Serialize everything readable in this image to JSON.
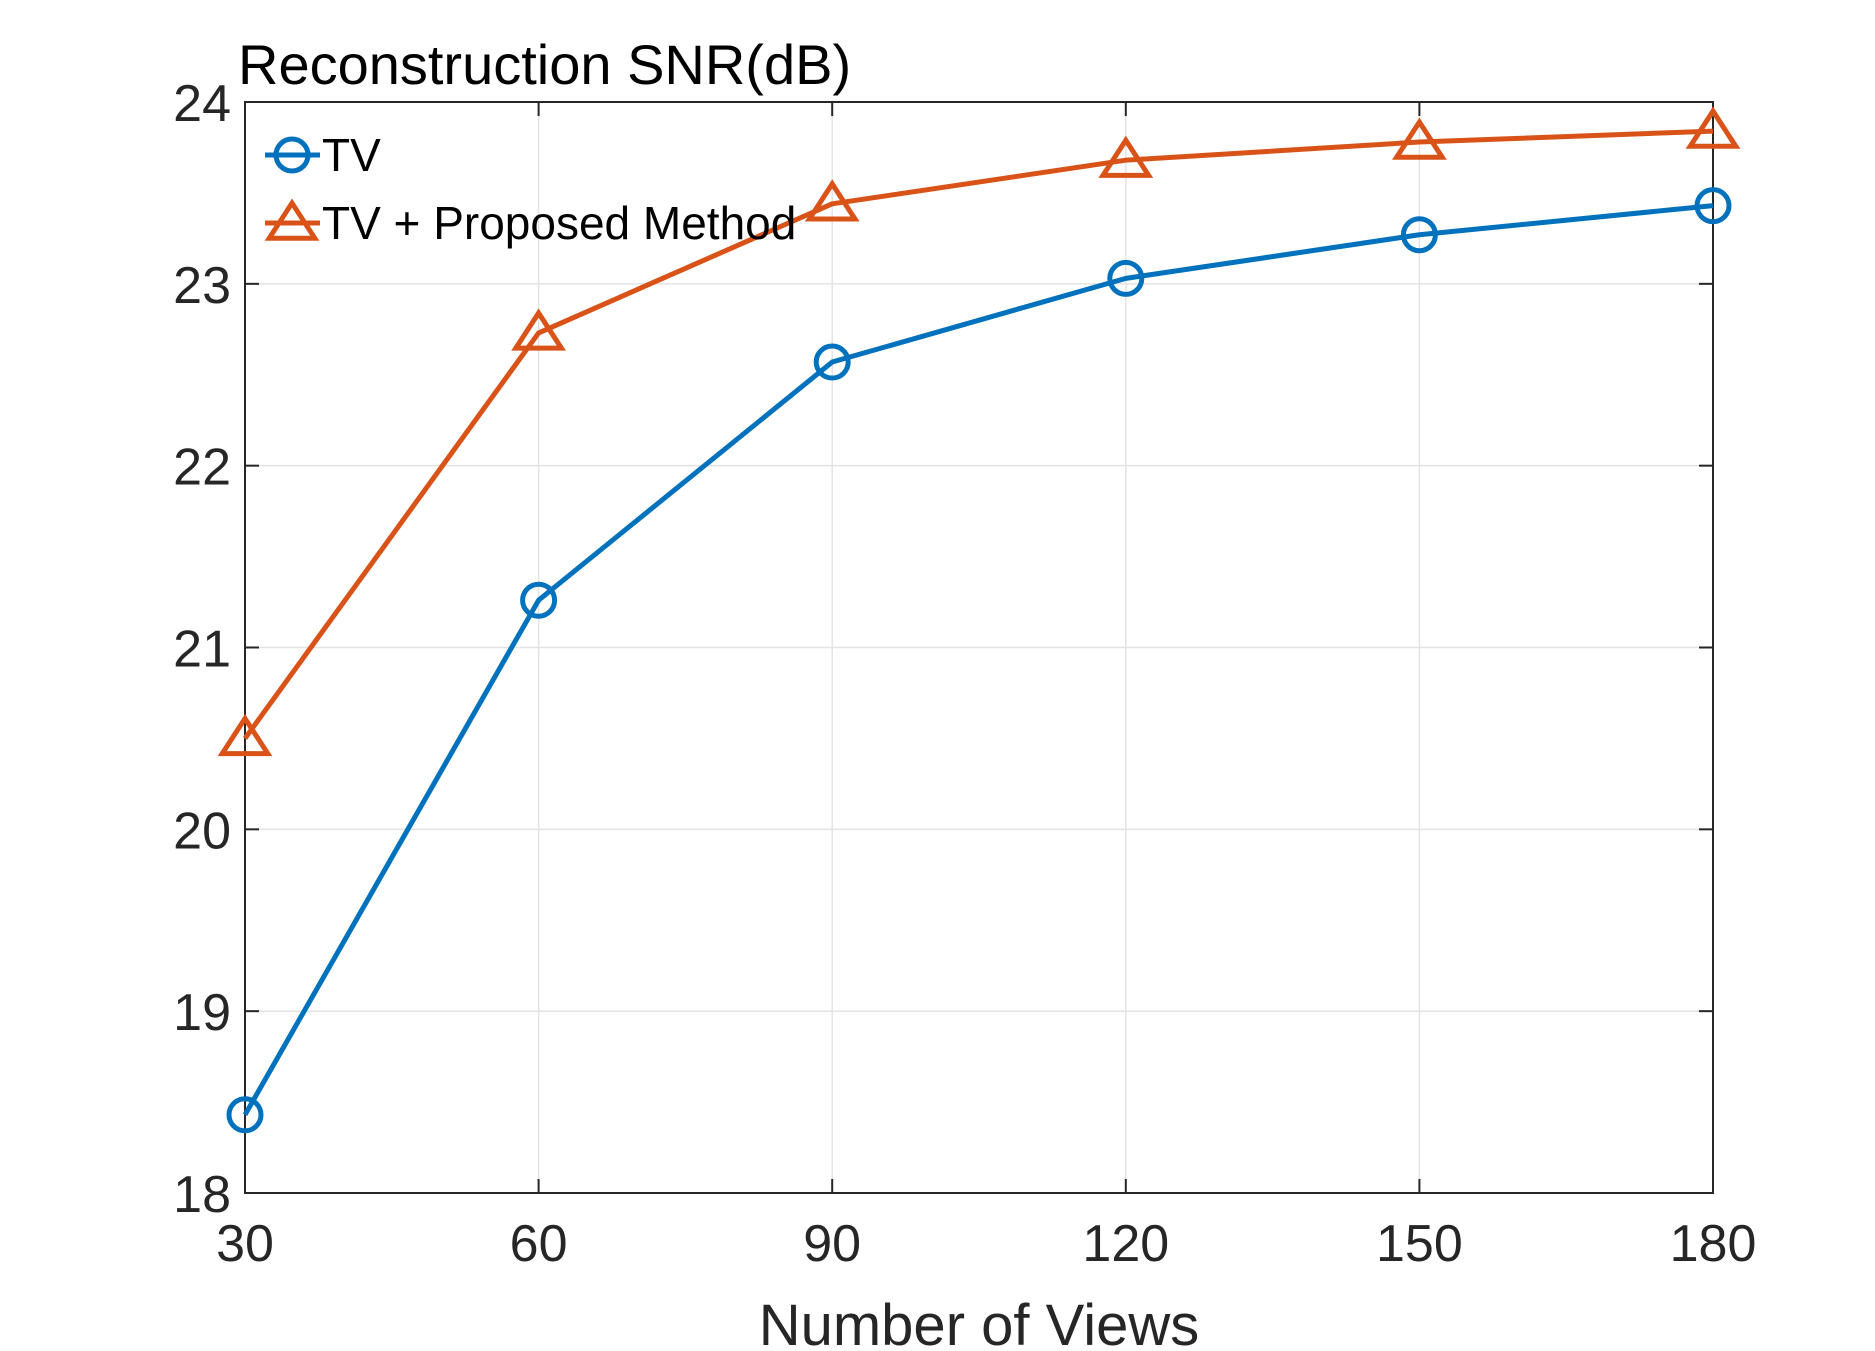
{
  "chart_data": {
    "type": "line",
    "title": "Reconstruction SNR(dB)",
    "xlabel": "Number of Views",
    "ylabel": "",
    "x": [
      30,
      60,
      90,
      120,
      150,
      180
    ],
    "xlim": [
      30,
      180
    ],
    "ylim": [
      18,
      24
    ],
    "xticks": [
      30,
      60,
      90,
      120,
      150,
      180
    ],
    "yticks": [
      18,
      19,
      20,
      21,
      22,
      23,
      24
    ],
    "grid": true,
    "legend_position": "top-left",
    "series": [
      {
        "name": "TV",
        "marker": "circle",
        "color": "#0072BD",
        "values": [
          18.43,
          21.26,
          22.57,
          23.03,
          23.27,
          23.43
        ]
      },
      {
        "name": "TV + Proposed Method",
        "marker": "triangle",
        "color": "#D95319",
        "values": [
          20.5,
          22.73,
          23.44,
          23.68,
          23.78,
          23.84
        ]
      }
    ]
  }
}
